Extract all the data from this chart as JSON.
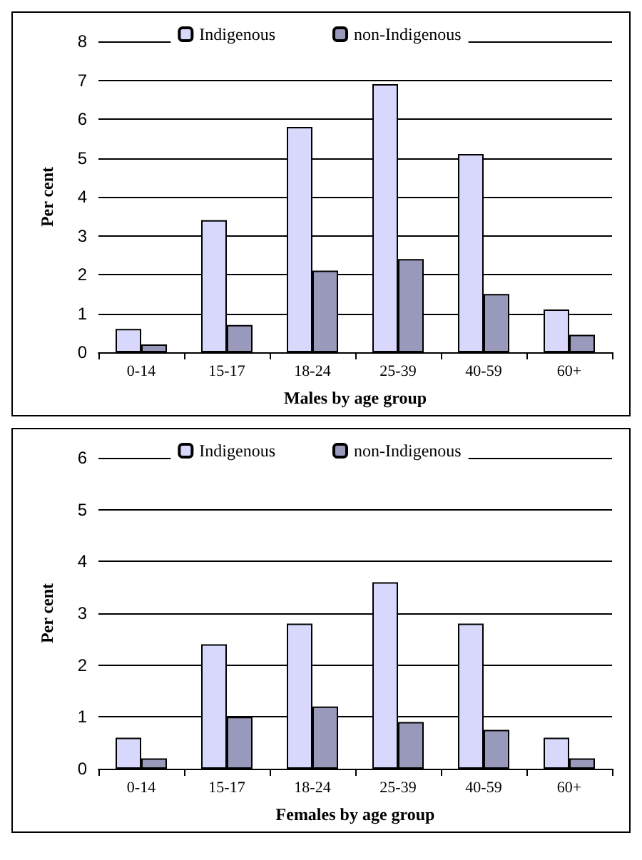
{
  "chart_data": [
    {
      "type": "bar",
      "xlabel": "Males by age group",
      "ylabel": "Per cent",
      "categories": [
        "0-14",
        "15-17",
        "18-24",
        "25-39",
        "40-59",
        "60+"
      ],
      "series": [
        {
          "name": "Indigenous",
          "color": "#d8d8fc",
          "values": [
            0.6,
            3.4,
            5.8,
            6.9,
            5.1,
            1.1
          ]
        },
        {
          "name": "non-Indigenous",
          "color": "#9999bb",
          "values": [
            0.2,
            0.7,
            2.1,
            2.4,
            1.5,
            0.45
          ]
        }
      ],
      "ylim": [
        0,
        8
      ],
      "yticks": [
        0,
        1,
        2,
        3,
        4,
        5,
        6,
        7,
        8
      ],
      "grid": "y",
      "legend": "top"
    },
    {
      "type": "bar",
      "xlabel": "Females by age group",
      "ylabel": "Per cent",
      "categories": [
        "0-14",
        "15-17",
        "18-24",
        "25-39",
        "40-59",
        "60+"
      ],
      "series": [
        {
          "name": "Indigenous",
          "color": "#d8d8fc",
          "values": [
            0.6,
            2.4,
            2.8,
            3.6,
            2.8,
            0.6
          ]
        },
        {
          "name": "non-Indigenous",
          "color": "#9999bb",
          "values": [
            0.2,
            1.0,
            1.2,
            0.9,
            0.75,
            0.2
          ]
        }
      ],
      "ylim": [
        0,
        6
      ],
      "yticks": [
        0,
        1,
        2,
        3,
        4,
        5,
        6
      ],
      "grid": "y",
      "legend": "top"
    }
  ]
}
